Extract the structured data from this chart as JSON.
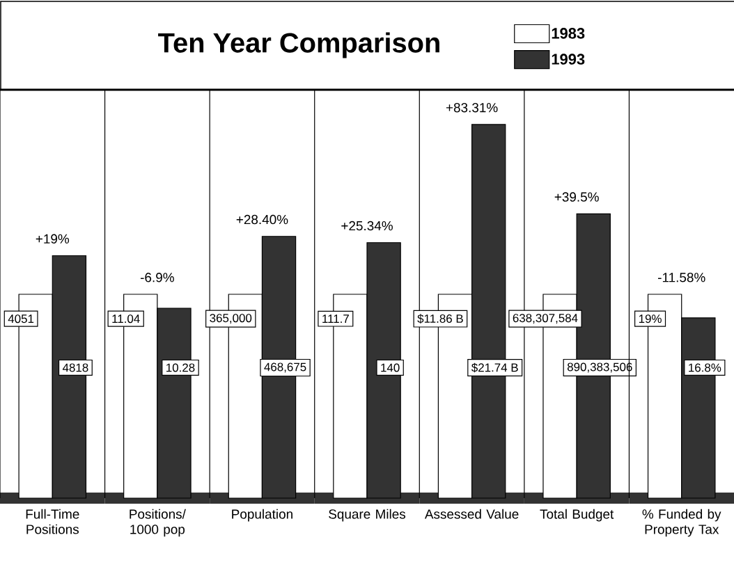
{
  "chart_data": [
    {
      "type": "other",
      "title": "Ten Year Comparison"
    },
    {
      "type": "bar",
      "legend": "top right",
      "categories": [
        "Full-Time Positions"
      ],
      "ylim": [
        0,
        8102
      ],
      "annotations": [
        "+19%"
      ],
      "series": [
        {
          "name": "1983",
          "color": "#ffffff",
          "values": [
            4051
          ],
          "value_labels": [
            "4051"
          ]
        },
        {
          "name": "1993",
          "color": "#333333",
          "values": [
            4818
          ],
          "value_labels": [
            "4818"
          ]
        }
      ]
    },
    {
      "type": "bar",
      "categories": [
        "Positions/ 1000 pop"
      ],
      "ylim": [
        0,
        22.08
      ],
      "annotations": [
        "-6.9%"
      ],
      "series": [
        {
          "color": "#ffffff",
          "values": [
            11.04
          ],
          "value_labels": [
            "11.04"
          ]
        },
        {
          "color": "#333333",
          "values": [
            10.28
          ],
          "value_labels": [
            "10.28"
          ]
        }
      ]
    },
    {
      "type": "bar",
      "categories": [
        "Population"
      ],
      "ylim": [
        0,
        730000
      ],
      "annotations": [
        "+28.40%"
      ],
      "series": [
        {
          "color": "#ffffff",
          "values": [
            365000
          ],
          "value_labels": [
            "365,000"
          ]
        },
        {
          "color": "#333333",
          "values": [
            468675
          ],
          "value_labels": [
            "468,675"
          ]
        }
      ]
    },
    {
      "type": "bar",
      "categories": [
        "Square Miles"
      ],
      "ylim": [
        0,
        223.4
      ],
      "annotations": [
        "+25.34%"
      ],
      "series": [
        {
          "color": "#ffffff",
          "values": [
            111.7
          ],
          "value_labels": [
            "111.7"
          ]
        },
        {
          "color": "#333333",
          "values": [
            140
          ],
          "value_labels": [
            "140"
          ]
        }
      ]
    },
    {
      "type": "bar",
      "categories": [
        "Assessed Value"
      ],
      "ylim": [
        0,
        23.72
      ],
      "annotations": [
        "+83.31%"
      ],
      "series": [
        {
          "color": "#ffffff",
          "values": [
            11.86
          ],
          "value_labels": [
            "$11.86 B"
          ]
        },
        {
          "color": "#333333",
          "values": [
            21.74
          ],
          "value_labels": [
            "$21.74 B"
          ]
        }
      ]
    },
    {
      "type": "bar",
      "categories": [
        "Total Budget"
      ],
      "ylim": [
        0,
        1276615168
      ],
      "annotations": [
        "+39.5%"
      ],
      "series": [
        {
          "color": "#ffffff",
          "values": [
            638307584
          ],
          "value_labels": [
            "638,307,584"
          ]
        },
        {
          "color": "#333333",
          "values": [
            890383506
          ],
          "value_labels": [
            "890,383,506"
          ]
        }
      ]
    },
    {
      "type": "bar",
      "categories": [
        "% Funded by Property Tax"
      ],
      "ylim": [
        0,
        38
      ],
      "annotations": [
        "-11.58%"
      ],
      "series": [
        {
          "color": "#ffffff",
          "values": [
            19
          ],
          "value_labels": [
            "19%"
          ]
        },
        {
          "color": "#333333",
          "values": [
            16.8
          ],
          "value_labels": [
            "16.8%"
          ]
        }
      ]
    }
  ]
}
